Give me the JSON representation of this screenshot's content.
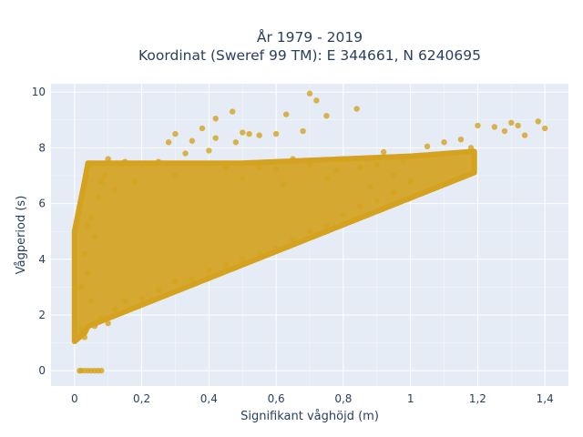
{
  "chart_data": {
    "type": "scatter",
    "title_line1": "År 1979 - 2019",
    "title_line2": "Koordinat (Sweref 99 TM): E 344661, N 6240695",
    "xlabel": "Signifikant våghöjd (m)",
    "ylabel": "Vågperiod (s)",
    "xlim": [
      -0.07,
      1.47
    ],
    "ylim": [
      -0.55,
      10.3
    ],
    "xticks": [
      {
        "value": 0,
        "label": "0"
      },
      {
        "value": 0.2,
        "label": "0,2"
      },
      {
        "value": 0.4,
        "label": "0,4"
      },
      {
        "value": 0.6,
        "label": "0,6"
      },
      {
        "value": 0.8,
        "label": "0,8"
      },
      {
        "value": 1.0,
        "label": "1"
      },
      {
        "value": 1.2,
        "label": "1,2"
      },
      {
        "value": 1.4,
        "label": "1,4"
      }
    ],
    "yticks": [
      {
        "value": 0,
        "label": "0"
      },
      {
        "value": 2,
        "label": "2"
      },
      {
        "value": 4,
        "label": "4"
      },
      {
        "value": 6,
        "label": "6"
      },
      {
        "value": 8,
        "label": "8"
      },
      {
        "value": 10,
        "label": "10"
      }
    ],
    "grid": true,
    "legend": "none",
    "marker_color": "#d4a21f",
    "background_color": "#e5ecf6",
    "series": [
      {
        "points": [
          [
            0.7,
            9.95
          ],
          [
            0.72,
            9.7
          ],
          [
            0.84,
            9.4
          ],
          [
            0.75,
            9.15
          ],
          [
            0.63,
            9.2
          ],
          [
            0.47,
            9.3
          ],
          [
            0.42,
            9.05
          ],
          [
            0.68,
            8.6
          ],
          [
            0.6,
            8.5
          ],
          [
            0.55,
            8.45
          ],
          [
            0.52,
            8.5
          ],
          [
            0.5,
            8.55
          ],
          [
            0.42,
            8.35
          ],
          [
            0.38,
            8.7
          ],
          [
            0.3,
            8.5
          ],
          [
            0.28,
            8.2
          ],
          [
            0.35,
            8.25
          ],
          [
            0.48,
            8.2
          ],
          [
            1.2,
            8.8
          ],
          [
            1.25,
            8.75
          ],
          [
            1.28,
            8.6
          ],
          [
            1.32,
            8.8
          ],
          [
            1.38,
            8.95
          ],
          [
            1.4,
            8.7
          ],
          [
            1.34,
            8.45
          ],
          [
            1.3,
            8.9
          ],
          [
            1.15,
            8.3
          ],
          [
            1.1,
            8.2
          ],
          [
            1.18,
            8.0
          ],
          [
            0.1,
            7.6
          ],
          [
            0.15,
            7.5
          ],
          [
            0.2,
            7.4
          ],
          [
            0.25,
            7.5
          ],
          [
            0.33,
            7.8
          ],
          [
            0.4,
            7.9
          ],
          [
            0.45,
            7.3
          ],
          [
            0.55,
            7.3
          ],
          [
            0.6,
            7.25
          ],
          [
            0.65,
            7.6
          ],
          [
            0.7,
            7.4
          ],
          [
            0.78,
            7.2
          ],
          [
            0.85,
            7.3
          ],
          [
            0.9,
            7.4
          ],
          [
            0.98,
            7.5
          ],
          [
            1.05,
            7.7
          ],
          [
            0.92,
            7.85
          ],
          [
            0.8,
            7.6
          ],
          [
            0.3,
            7.0
          ],
          [
            0.18,
            6.8
          ],
          [
            0.12,
            6.5
          ],
          [
            0.5,
            6.9
          ],
          [
            0.62,
            6.7
          ],
          [
            0.75,
            6.9
          ],
          [
            1.05,
            8.05
          ],
          [
            1.12,
            7.8
          ],
          [
            0.95,
            7.0
          ],
          [
            0.88,
            6.6
          ],
          [
            0.02,
            1.5
          ],
          [
            0.03,
            1.2
          ],
          [
            0.05,
            2.5
          ],
          [
            0.04,
            3.5
          ],
          [
            0.06,
            4.8
          ],
          [
            0.05,
            5.5
          ],
          [
            0.07,
            6.2
          ],
          [
            0.08,
            6.8
          ],
          [
            0.09,
            7.0
          ],
          [
            0.02,
            3.0
          ],
          [
            0.03,
            4.2
          ],
          [
            0.04,
            5.2
          ],
          [
            0.06,
            1.6
          ],
          [
            0.08,
            1.9
          ],
          [
            0.1,
            1.7
          ],
          [
            0.12,
            2.2
          ],
          [
            0.15,
            2.5
          ],
          [
            0.2,
            2.6
          ],
          [
            0.25,
            2.9
          ],
          [
            0.3,
            3.2
          ],
          [
            0.35,
            3.3
          ],
          [
            0.4,
            3.6
          ],
          [
            0.5,
            4.0
          ],
          [
            0.6,
            4.4
          ],
          [
            0.7,
            5.0
          ],
          [
            0.8,
            5.6
          ],
          [
            0.9,
            6.1
          ],
          [
            1.0,
            6.8
          ],
          [
            0.95,
            6.4
          ],
          [
            0.85,
            5.9
          ],
          [
            0.75,
            5.2
          ],
          [
            0.65,
            4.7
          ],
          [
            0.55,
            4.2
          ],
          [
            0.45,
            3.8
          ],
          [
            0.015,
            0
          ],
          [
            0.02,
            0
          ],
          [
            0.03,
            0
          ],
          [
            0.04,
            0
          ],
          [
            0.05,
            0
          ],
          [
            0.06,
            0
          ],
          [
            0.07,
            0
          ],
          [
            0.08,
            0
          ]
        ]
      }
    ]
  }
}
